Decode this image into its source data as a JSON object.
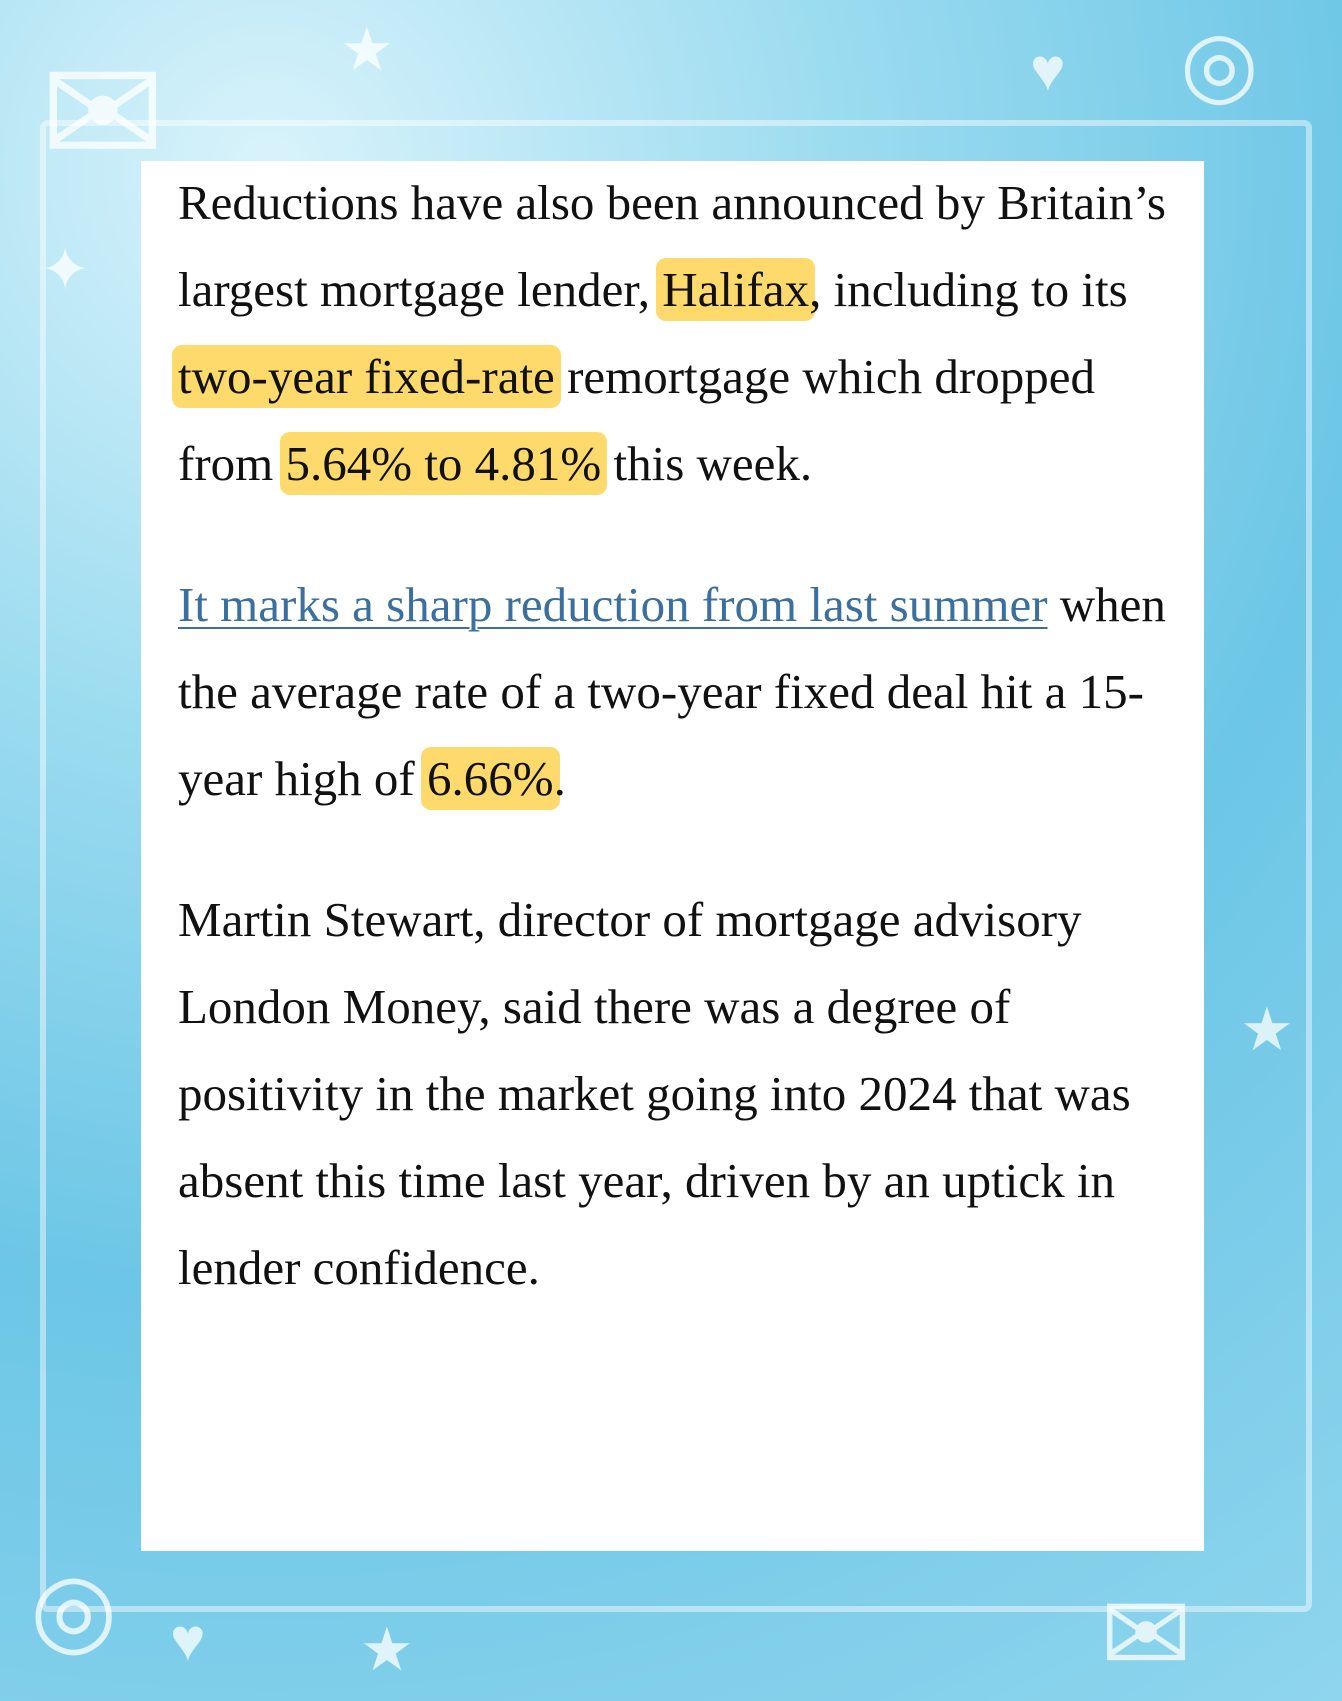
{
  "colors": {
    "highlight": "#fed96b",
    "link": "#3a6f9e",
    "background": "#8fd5ee"
  },
  "decorations": [
    "envelope-icon",
    "star-icon",
    "heart-icon",
    "spiral-icon"
  ],
  "paragraphs": [
    {
      "t1": "Reductions have also been announced by Britain’s largest mortgage lender, ",
      "h1": "Halifax",
      "t2": ", including to its ",
      "h2": "two-year fixed-rate",
      "t3": " remortgage which dropped from ",
      "h3": "5.64% to 4.81%",
      "t4": " this week."
    },
    {
      "link": "It marks a sharp reduction from last summer",
      "t1": " when the average rate of a two-year fixed deal hit a 15-year high of ",
      "h1": "6.66%",
      "t2": "."
    },
    {
      "t1": "Martin Stewart, director of mortgage advisory London Money, said there was a degree of positivity in the market going into 2024 that was absent this time last year, driven by an uptick in lender confidence."
    }
  ]
}
